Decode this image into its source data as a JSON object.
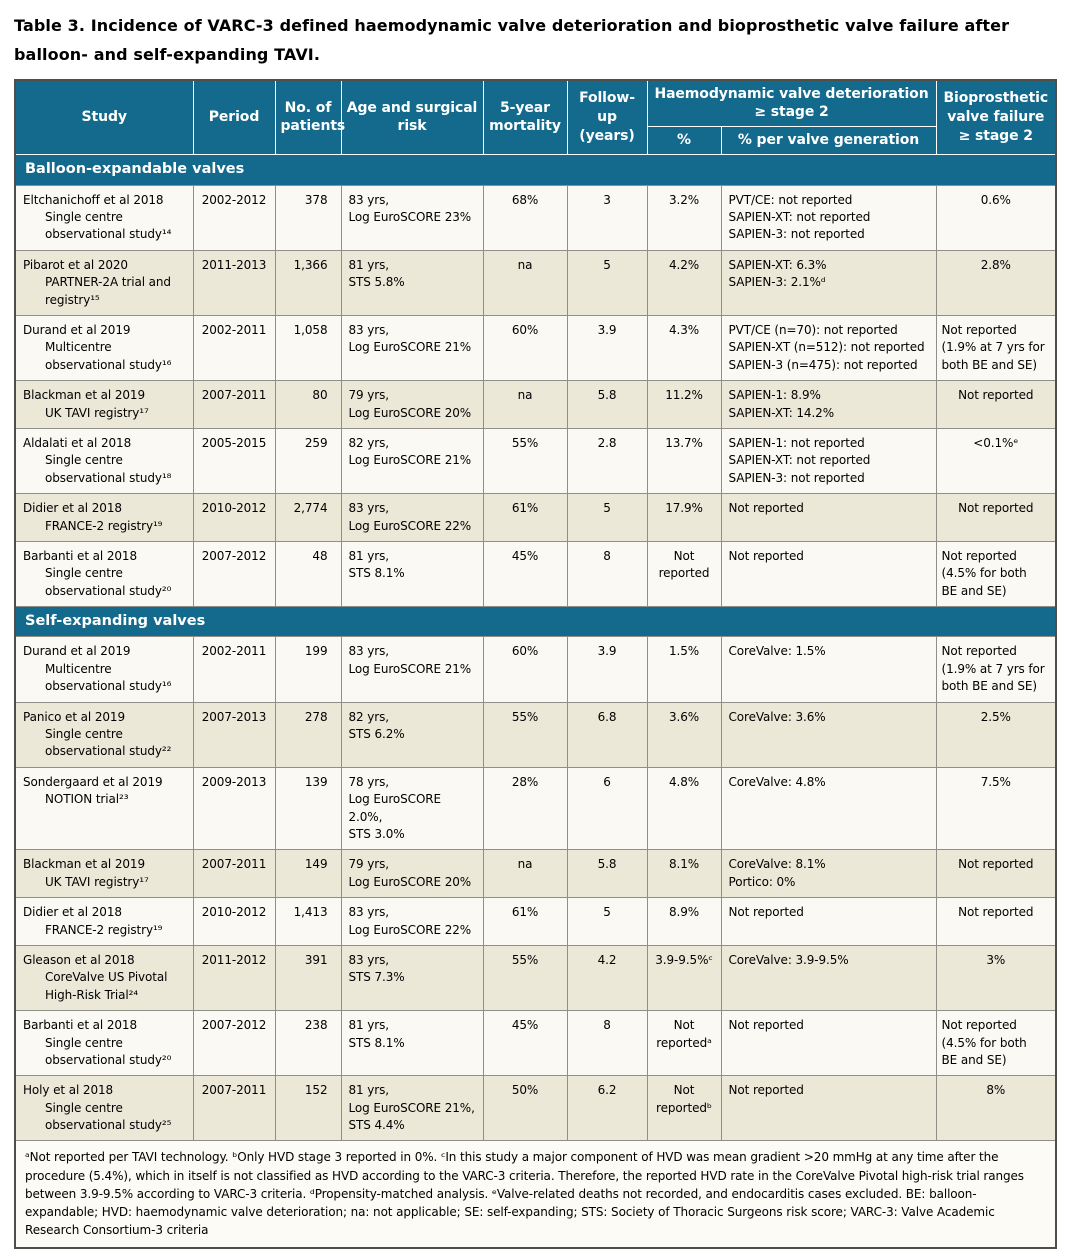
{
  "title": "Table 3. Incidence of VARC-3 defined haemodynamic valve deterioration and bioprosthetic valve failure after balloon- and self-expanding TAVI.",
  "colors": {
    "header_teal": "#136a8c",
    "row_beige": "#ece8d8",
    "row_white": "#faf9f3"
  },
  "table": {
    "headers": {
      "study": "Study",
      "period": "Period",
      "patients": "No. of\npatients",
      "age_risk": "Age and surgical\nrisk",
      "mortality": "5-year\nmortality",
      "followup": "Follow-up\n(years)",
      "hvd_group": "Haemodynamic valve deterioration\n≥ stage 2",
      "hvd_pct": "%",
      "hvd_gen": "% per valve generation",
      "bvf": "Bioprosthetic\nvalve failure\n≥ stage 2"
    },
    "sections": [
      {
        "label": "Balloon-expandable valves",
        "rows": [
          {
            "study": [
              "Eltchanichoff et al 2018",
              "Single centre",
              "observational study¹⁴"
            ],
            "period": "2002-2012",
            "patients": "378",
            "age_risk": "83 yrs,\nLog EuroSCORE 23%",
            "mortality": "68%",
            "followup": "3",
            "hvd_pct": "3.2%",
            "hvd_gen": "PVT/CE: not reported\nSAPIEN-XT: not reported\nSAPIEN-3: not reported",
            "bvf": "0.6%"
          },
          {
            "study": [
              "Pibarot et al 2020",
              "PARTNER-2A trial and",
              "registry¹⁵"
            ],
            "period": "2011-2013",
            "patients": "1,366",
            "age_risk": "81 yrs,\nSTS 5.8%",
            "mortality": "na",
            "followup": "5",
            "hvd_pct": "4.2%",
            "hvd_gen": "SAPIEN-XT: 6.3%\nSAPIEN-3: 2.1%ᵈ",
            "bvf": "2.8%"
          },
          {
            "study": [
              "Durand et al 2019",
              "Multicentre",
              "observational study¹⁶"
            ],
            "period": "2002-2011",
            "patients": "1,058",
            "age_risk": "83 yrs,\nLog EuroSCORE 21%",
            "mortality": "60%",
            "followup": "3.9",
            "hvd_pct": "4.3%",
            "hvd_gen": "PVT/CE (n=70): not reported\nSAPIEN-XT (n=512): not reported\nSAPIEN-3 (n=475): not reported",
            "bvf": "Not reported\n(1.9% at 7 yrs for\nboth BE and SE)"
          },
          {
            "study": [
              "Blackman et al 2019",
              "UK TAVI registry¹⁷"
            ],
            "period": "2007-2011",
            "patients": "80",
            "age_risk": "79 yrs,\nLog EuroSCORE 20%",
            "mortality": "na",
            "followup": "5.8",
            "hvd_pct": "11.2%",
            "hvd_gen": "SAPIEN-1: 8.9%\nSAPIEN-XT: 14.2%",
            "bvf": "Not reported"
          },
          {
            "study": [
              "Aldalati et al 2018",
              "Single centre",
              "observational study¹⁸"
            ],
            "period": "2005-2015",
            "patients": "259",
            "age_risk": "82 yrs,\nLog EuroSCORE 21%",
            "mortality": "55%",
            "followup": "2.8",
            "hvd_pct": "13.7%",
            "hvd_gen": "SAPIEN-1: not reported\nSAPIEN-XT: not reported\nSAPIEN-3: not reported",
            "bvf": "<0.1%ᵉ"
          },
          {
            "study": [
              "Didier et al 2018",
              "FRANCE-2 registry¹⁹"
            ],
            "period": "2010-2012",
            "patients": "2,774",
            "age_risk": "83 yrs,\nLog EuroSCORE 22%",
            "mortality": "61%",
            "followup": "5",
            "hvd_pct": "17.9%",
            "hvd_gen": "Not reported",
            "bvf": "Not reported"
          },
          {
            "study": [
              "Barbanti et al 2018",
              "Single centre",
              "observational study²⁰"
            ],
            "period": "2007-2012",
            "patients": "48",
            "age_risk": "81 yrs,\nSTS 8.1%",
            "mortality": "45%",
            "followup": "8",
            "hvd_pct": "Not\nreported",
            "hvd_gen": "Not reported",
            "bvf": "Not reported\n(4.5% for both\nBE and SE)"
          }
        ]
      },
      {
        "label": "Self-expanding valves",
        "rows": [
          {
            "study": [
              "Durand et al 2019",
              "Multicentre",
              "observational study¹⁶"
            ],
            "period": "2002-2011",
            "patients": "199",
            "age_risk": "83 yrs,\nLog EuroSCORE 21%",
            "mortality": "60%",
            "followup": "3.9",
            "hvd_pct": "1.5%",
            "hvd_gen": "CoreValve: 1.5%",
            "bvf": "Not reported\n(1.9% at 7 yrs for\nboth BE and SE)"
          },
          {
            "study": [
              "Panico et al 2019",
              "Single centre",
              "observational study²²"
            ],
            "period": "2007-2013",
            "patients": "278",
            "age_risk": "82 yrs,\nSTS 6.2%",
            "mortality": "55%",
            "followup": "6.8",
            "hvd_pct": "3.6%",
            "hvd_gen": "CoreValve: 3.6%",
            "bvf": "2.5%"
          },
          {
            "study": [
              "Sondergaard et al 2019",
              "NOTION trial²³"
            ],
            "period": "2009-2013",
            "patients": "139",
            "age_risk": "78 yrs,\nLog EuroSCORE 2.0%,\nSTS 3.0%",
            "mortality": "28%",
            "followup": "6",
            "hvd_pct": "4.8%",
            "hvd_gen": "CoreValve: 4.8%",
            "bvf": "7.5%"
          },
          {
            "study": [
              "Blackman et al 2019",
              "UK TAVI registry¹⁷"
            ],
            "period": "2007-2011",
            "patients": "149",
            "age_risk": "79 yrs,\nLog EuroSCORE 20%",
            "mortality": "na",
            "followup": "5.8",
            "hvd_pct": "8.1%",
            "hvd_gen": "CoreValve: 8.1%\nPortico: 0%",
            "bvf": "Not reported"
          },
          {
            "study": [
              "Didier et al 2018",
              "FRANCE-2 registry¹⁹"
            ],
            "period": "2010-2012",
            "patients": "1,413",
            "age_risk": "83 yrs,\nLog EuroSCORE 22%",
            "mortality": "61%",
            "followup": "5",
            "hvd_pct": "8.9%",
            "hvd_gen": "Not reported",
            "bvf": "Not reported"
          },
          {
            "study": [
              "Gleason et al 2018",
              "CoreValve US Pivotal",
              "High-Risk Trial²⁴"
            ],
            "period": "2011-2012",
            "patients": "391",
            "age_risk": "83 yrs,\nSTS 7.3%",
            "mortality": "55%",
            "followup": "4.2",
            "hvd_pct": "3.9-9.5%ᶜ",
            "hvd_gen": "CoreValve: 3.9-9.5%",
            "bvf": "3%"
          },
          {
            "study": [
              "Barbanti et al 2018",
              "Single centre",
              "observational study²⁰"
            ],
            "period": "2007-2012",
            "patients": "238",
            "age_risk": "81 yrs,\nSTS 8.1%",
            "mortality": "45%",
            "followup": "8",
            "hvd_pct": "Not\nreportedᵃ",
            "hvd_gen": "Not reported",
            "bvf": "Not reported\n(4.5% for both\nBE and SE)"
          },
          {
            "study": [
              "Holy et al 2018",
              "Single centre",
              "observational study²⁵"
            ],
            "period": "2007-2011",
            "patients": "152",
            "age_risk": "81 yrs,\nLog EuroSCORE 21%,\nSTS 4.4%",
            "mortality": "50%",
            "followup": "6.2",
            "hvd_pct": "Not\nreportedᵇ",
            "hvd_gen": "Not reported",
            "bvf": "8%"
          }
        ]
      }
    ]
  },
  "footnote": "ᵃNot reported per TAVI technology. ᵇOnly HVD stage 3 reported in 0%. ᶜIn this study a major component of HVD was mean gradient >20 mmHg at any time after the procedure (5.4%), which in itself is not classified as HVD according to the VARC-3 criteria. Therefore, the reported HVD rate in the CoreValve Pivotal high-risk trial ranges between 3.9-9.5% according to VARC-3 criteria. ᵈPropensity-matched analysis. ᵉValve-related deaths not recorded, and endocarditis cases excluded. BE: balloon-expandable; HVD: haemodynamic valve deterioration; na: not applicable; SE: self-expanding; STS: Society of Thoracic Surgeons risk score; VARC-3: Valve Academic Research Consortium-3 criteria"
}
